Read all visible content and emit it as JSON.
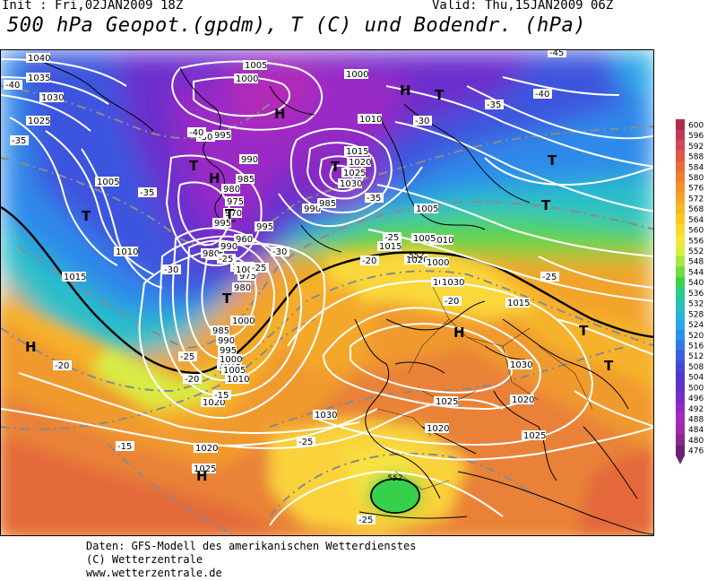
{
  "header": {
    "init": "Init : Fri,02JAN2009 18Z",
    "valid": "Valid: Thu,15JAN2009 06Z",
    "title": "500 hPa Geopot.(gpdm), T (C) und Bodendr. (hPa)"
  },
  "footer": {
    "line1": "Daten: GFS-Modell des amerikanischen Wetterdienstes",
    "line2": "(C) Wetterzentrale",
    "line3": "www.wetterzentrale.de"
  },
  "legend": {
    "labels": [
      "600",
      "596",
      "592",
      "588",
      "584",
      "580",
      "576",
      "572",
      "568",
      "564",
      "560",
      "556",
      "552",
      "548",
      "544",
      "540",
      "536",
      "532",
      "528",
      "524",
      "520",
      "516",
      "512",
      "508",
      "504",
      "500",
      "496",
      "492",
      "488",
      "484",
      "480",
      "476"
    ],
    "colors": [
      "#b02a4a",
      "#c23a5a",
      "#d24a5a",
      "#e0584a",
      "#ea6a3a",
      "#ef7e30",
      "#f3922a",
      "#f6a528",
      "#f8b726",
      "#fac824",
      "#fad830",
      "#f6e640",
      "#d9ee42",
      "#a8e83e",
      "#70de3c",
      "#3ed44a",
      "#2ccc86",
      "#28c2b0",
      "#28b8d2",
      "#2aa8e8",
      "#2c92ec",
      "#3478e8",
      "#3c5ee0",
      "#4448d6",
      "#5038d0",
      "#6230cc",
      "#7a2cc8",
      "#922ac6",
      "#a62ac0",
      "#a02aa8",
      "#86288e",
      "#6a2272"
    ]
  },
  "map": {
    "pressure_labels": [
      "1040",
      "1035",
      "1030",
      "1025",
      "1005",
      "1000",
      "995",
      "990",
      "985",
      "980",
      "975",
      "970",
      "1005",
      "1010",
      "1015",
      "1020",
      "1025",
      "1030",
      "1000",
      "1010",
      "1015",
      "1020",
      "1025",
      "1030",
      "1005",
      "1010",
      "1015",
      "1020",
      "1025",
      "1030",
      "1025",
      "1020",
      "1015",
      "1010",
      "1005",
      "1000",
      "995",
      "990",
      "985",
      "1015",
      "1020",
      "1025",
      "1030",
      "1020",
      "1010",
      "1005",
      "1000",
      "995",
      "990",
      "985",
      "980",
      "975",
      "970",
      "960",
      "1000",
      "1005",
      "995",
      "990",
      "985",
      "980"
    ],
    "temp_labels": [
      "-40",
      "-35",
      "-30",
      "-25",
      "-20",
      "-15",
      "-40",
      "-35",
      "-30",
      "-25",
      "-20",
      "-15",
      "-45",
      "-40",
      "-35",
      "-30",
      "-25",
      "-25",
      "-25",
      "-20",
      "-25",
      "-30",
      "-35",
      "-20",
      "-25"
    ],
    "pressure_centers": [
      "H",
      "H",
      "H",
      "H",
      "H",
      "H",
      "T",
      "T",
      "T",
      "T",
      "T",
      "T",
      "T",
      "T",
      "T",
      "T"
    ],
    "height_label": "552"
  },
  "palette": {
    "isobar": "#ffffff",
    "isotherm": "#8a8a8a",
    "coast": "#000000",
    "front_552": "#000000"
  }
}
